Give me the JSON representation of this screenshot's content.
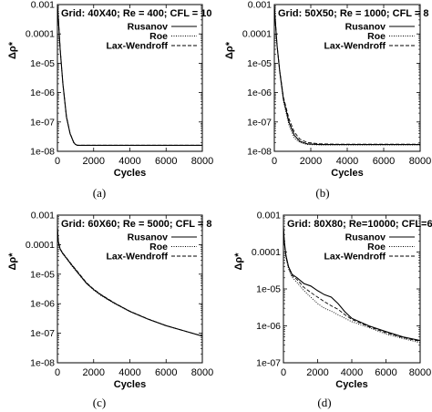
{
  "figure": {
    "panels": [
      {
        "id": "a",
        "caption": "(a)",
        "annotation": "Grid: 40X40; Re = 400; CFL = 10"
      },
      {
        "id": "b",
        "caption": "(b)",
        "annotation": "Grid: 50X50; Re = 1000; CFL = 8"
      },
      {
        "id": "c",
        "caption": "(c)",
        "annotation": "Grid: 60X60; Re = 5000; CFL = 8"
      },
      {
        "id": "d",
        "caption": "(d)",
        "annotation": "Grid: 80X80; Re=10000; CFL=6"
      }
    ]
  },
  "chart_data": [
    {
      "type": "line",
      "title": "Grid: 40X40; Re = 400; CFL = 10",
      "xlabel": "Cycles",
      "ylabel": "Δρ*",
      "xlim": [
        0,
        8000
      ],
      "ylim": [
        1e-08,
        0.001
      ],
      "yscale": "log",
      "x_ticks": [
        "0",
        "2000",
        "4000",
        "6000",
        "8000"
      ],
      "y_ticks": [
        "0.001",
        "0.0001",
        "1e-05",
        "1e-06",
        "1e-07",
        "1e-08"
      ],
      "grid": false,
      "legend_position": "top-right",
      "series": [
        {
          "name": "Rusanov",
          "style": "solid",
          "x": [
            0,
            50,
            150,
            300,
            500,
            700,
            900,
            1000,
            1100,
            8000
          ],
          "y": [
            0.001,
            0.00035,
            3e-05,
            2e-06,
            1.5e-07,
            4e-08,
            2e-08,
            1.7e-08,
            1.6e-08,
            1.6e-08
          ]
        },
        {
          "name": "Roe",
          "style": "dotted",
          "x": [
            0,
            50,
            150,
            300,
            500,
            700,
            900,
            1000,
            1100,
            8000
          ],
          "y": [
            0.001,
            0.00033,
            2.9e-05,
            1.9e-06,
            1.45e-07,
            3.9e-08,
            1.95e-08,
            1.7e-08,
            1.6e-08,
            1.6e-08
          ]
        },
        {
          "name": "Lax-Wendroff",
          "style": "dashed",
          "x": [
            0,
            50,
            150,
            300,
            500,
            700,
            900,
            1000,
            1100,
            8000
          ],
          "y": [
            0.001,
            0.00034,
            3.1e-05,
            2.1e-06,
            1.55e-07,
            4.1e-08,
            2.05e-08,
            1.72e-08,
            1.62e-08,
            1.62e-08
          ]
        }
      ]
    },
    {
      "type": "line",
      "title": "Grid: 50X50; Re = 1000; CFL = 8",
      "xlabel": "Cycles",
      "ylabel": "Δρ*",
      "xlim": [
        0,
        8000
      ],
      "ylim": [
        1e-08,
        0.001
      ],
      "yscale": "log",
      "x_ticks": [
        "0",
        "2000",
        "4000",
        "6000",
        "8000"
      ],
      "y_ticks": [
        "0.001",
        "0.0001",
        "1e-05",
        "1e-06",
        "1e-07",
        "1e-08"
      ],
      "grid": false,
      "legend_position": "top-right",
      "series": [
        {
          "name": "Rusanov",
          "style": "solid",
          "x": [
            0,
            50,
            150,
            300,
            500,
            800,
            1100,
            1400,
            1800,
            2500,
            3500,
            8000
          ],
          "y": [
            0.001,
            0.0003,
            4e-05,
            5e-06,
            6e-07,
            1e-07,
            3.5e-08,
            2.2e-08,
            1.8e-08,
            1.7e-08,
            1.7e-08,
            1.7e-08
          ]
        },
        {
          "name": "Roe",
          "style": "dotted",
          "x": [
            0,
            50,
            150,
            300,
            500,
            800,
            1100,
            1400,
            1800,
            2500,
            3500,
            8000
          ],
          "y": [
            0.001,
            0.0003,
            3.8e-05,
            4.8e-06,
            5e-07,
            8e-08,
            2.8e-08,
            2e-08,
            1.7e-08,
            1.65e-08,
            1.65e-08,
            1.65e-08
          ]
        },
        {
          "name": "Lax-Wendroff",
          "style": "dashed",
          "x": [
            0,
            50,
            150,
            300,
            500,
            800,
            1100,
            1400,
            1800,
            2500,
            3500,
            8000
          ],
          "y": [
            0.001,
            0.00032,
            4.2e-05,
            5.5e-06,
            7e-07,
            1.3e-07,
            4.5e-08,
            2.6e-08,
            2e-08,
            1.8e-08,
            1.75e-08,
            1.75e-08
          ]
        }
      ]
    },
    {
      "type": "line",
      "title": "Grid: 60X60; Re = 5000; CFL = 8",
      "xlabel": "Cycles",
      "ylabel": "Δρ*",
      "xlim": [
        0,
        8000
      ],
      "ylim": [
        1e-08,
        0.001
      ],
      "yscale": "log",
      "x_ticks": [
        "0",
        "2000",
        "4000",
        "6000",
        "8000"
      ],
      "y_ticks": [
        "0.001",
        "0.0001",
        "1e-05",
        "1e-06",
        "1e-07",
        "1e-08"
      ],
      "grid": false,
      "legend_position": "top-right",
      "series": [
        {
          "name": "Rusanov",
          "style": "solid",
          "x": [
            0,
            50,
            150,
            300,
            500,
            800,
            1200,
            1600,
            2000,
            2400,
            2800,
            3200,
            4000,
            5000,
            6000,
            7000,
            8000
          ],
          "y": [
            0.0004,
            0.00013,
            7e-05,
            5e-05,
            3.5e-05,
            2e-05,
            1e-05,
            5e-06,
            3e-06,
            2e-06,
            1.4e-06,
            1e-06,
            5.5e-07,
            3e-07,
            1.8e-07,
            1.2e-07,
            8e-08
          ]
        },
        {
          "name": "Roe",
          "style": "dotted",
          "x": [
            0,
            50,
            150,
            300,
            500,
            800,
            1200,
            1600,
            2000,
            2400,
            2800,
            3200,
            4000,
            5000,
            6000,
            7000,
            8000
          ],
          "y": [
            0.0004,
            0.00012,
            6.8e-05,
            4.8e-05,
            3.4e-05,
            1.9e-05,
            9.5e-06,
            4.8e-06,
            2.9e-06,
            1.9e-06,
            1.35e-06,
            9.8e-07,
            5.4e-07,
            3e-07,
            1.8e-07,
            1.2e-07,
            8e-08
          ]
        },
        {
          "name": "Lax-Wendroff",
          "style": "dashed",
          "x": [
            0,
            50,
            150,
            300,
            500,
            800,
            1200,
            1600,
            2000,
            2400,
            2800,
            3200,
            4000,
            5000,
            6000,
            7000,
            8000
          ],
          "y": [
            0.0004,
            0.00013,
            7.2e-05,
            5.2e-05,
            3.6e-05,
            2.1e-05,
            1.05e-05,
            5.2e-06,
            3.1e-06,
            2.05e-06,
            1.45e-06,
            1.02e-06,
            5.6e-07,
            3.05e-07,
            1.8e-07,
            1.2e-07,
            8e-08
          ]
        }
      ]
    },
    {
      "type": "line",
      "title": "Grid: 80X80; Re=10000; CFL=6",
      "xlabel": "Cycles",
      "ylabel": "Δρ*",
      "xlim": [
        0,
        8000
      ],
      "ylim": [
        1e-07,
        0.001
      ],
      "yscale": "log",
      "x_ticks": [
        "0",
        "2000",
        "4000",
        "6000",
        "8000"
      ],
      "y_ticks": [
        "0.001",
        "0.0001",
        "1e-05",
        "1e-06",
        "1e-07"
      ],
      "grid": false,
      "legend_position": "top-right",
      "series": [
        {
          "name": "Rusanov",
          "style": "solid",
          "x": [
            0,
            50,
            150,
            300,
            500,
            800,
            1200,
            1600,
            2000,
            2400,
            2800,
            3200,
            3600,
            4000,
            5000,
            6000,
            7000,
            8000
          ],
          "y": [
            0.0005,
            0.0002,
            8e-05,
            4e-05,
            2.5e-05,
            2e-05,
            1.4e-05,
            1.2e-05,
            9e-06,
            7e-06,
            6e-06,
            4e-06,
            2.4e-06,
            1.6e-06,
            1e-06,
            7e-07,
            5e-07,
            4e-07
          ]
        },
        {
          "name": "Roe",
          "style": "dotted",
          "x": [
            0,
            50,
            150,
            300,
            500,
            800,
            1200,
            1600,
            2000,
            2400,
            2800,
            3200,
            3600,
            4000,
            5000,
            6000,
            7000,
            8000
          ],
          "y": [
            0.0005,
            0.00018,
            7e-05,
            3.5e-05,
            2.1e-05,
            1.5e-05,
            9e-06,
            6e-06,
            4e-06,
            3e-06,
            2.5e-06,
            2e-06,
            1.6e-06,
            1.3e-06,
            9e-07,
            6e-07,
            4.5e-07,
            3.5e-07
          ]
        },
        {
          "name": "Lax-Wendroff",
          "style": "dashed",
          "x": [
            0,
            50,
            150,
            300,
            500,
            800,
            1200,
            1600,
            2000,
            2400,
            2800,
            3200,
            3600,
            4000,
            5000,
            6000,
            7000,
            8000
          ],
          "y": [
            0.0005,
            0.00019,
            7.5e-05,
            3.8e-05,
            2.3e-05,
            1.8e-05,
            1.1e-05,
            8e-06,
            6e-06,
            4.5e-06,
            3.5e-06,
            2.8e-06,
            2e-06,
            1.5e-06,
            9.5e-07,
            6.5e-07,
            4.8e-07,
            3.8e-07
          ]
        }
      ]
    }
  ]
}
